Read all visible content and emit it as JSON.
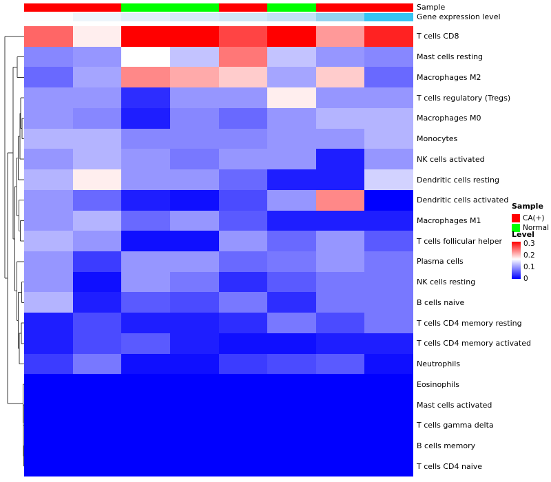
{
  "annotations": {
    "sample_label": "Sample",
    "expression_label": "Gene expression level",
    "sample_groups": [
      "CA(+)",
      "CA(+)",
      "Normal",
      "Normal",
      "CA(+)",
      "Normal",
      "CA(+)",
      "CA(+)"
    ],
    "expression_colors": [
      "#FDFDFE",
      "#EDF5FB",
      "#E0EFF9",
      "#D6EBF8",
      "#CFE8F7",
      "#C2E2F5",
      "#93D3F0",
      "#35C4F3"
    ]
  },
  "chart_data": {
    "type": "heatmap",
    "title": "",
    "rows": [
      "T cells CD8",
      "Mast cells resting",
      "Macrophages M2",
      "T cells regulatory (Tregs)",
      "Macrophages M0",
      "Monocytes",
      "NK cells activated",
      "Dendritic cells resting",
      "Dendritic cells activated",
      "Macrophages M1",
      "T cells follicular helper",
      "Plasma cells",
      "NK cells resting",
      "B cells naive",
      "T cells CD4 memory resting",
      "T cells CD4 memory activated",
      "Neutrophils",
      "Eosinophils",
      "Mast cells activated",
      "T cells gamma delta",
      "B cells memory",
      "T cells CD4 naive"
    ],
    "n_columns": 8,
    "column_groups": [
      "CA(+)",
      "CA(+)",
      "Normal",
      "Normal",
      "CA(+)",
      "Normal",
      "CA(+)",
      "CA(+)"
    ],
    "values": [
      [
        0.26,
        0.18,
        0.32,
        0.32,
        0.28,
        0.32,
        0.23,
        0.3
      ],
      [
        0.09,
        0.1,
        0.17,
        0.13,
        0.25,
        0.13,
        0.1,
        0.09
      ],
      [
        0.07,
        0.11,
        0.24,
        0.22,
        0.2,
        0.11,
        0.2,
        0.07
      ],
      [
        0.1,
        0.1,
        0.03,
        0.1,
        0.1,
        0.18,
        0.1,
        0.1
      ],
      [
        0.1,
        0.09,
        0.02,
        0.09,
        0.07,
        0.1,
        0.12,
        0.12
      ],
      [
        0.12,
        0.12,
        0.09,
        0.09,
        0.09,
        0.1,
        0.1,
        0.12
      ],
      [
        0.1,
        0.12,
        0.1,
        0.08,
        0.1,
        0.1,
        0.02,
        0.1
      ],
      [
        0.12,
        0.18,
        0.1,
        0.1,
        0.07,
        0.02,
        0.02,
        0.14
      ],
      [
        0.1,
        0.07,
        0.02,
        0.01,
        0.05,
        0.1,
        0.24,
        0.0
      ],
      [
        0.1,
        0.12,
        0.07,
        0.1,
        0.06,
        0.02,
        0.02,
        0.02
      ],
      [
        0.12,
        0.1,
        0.01,
        0.01,
        0.1,
        0.07,
        0.1,
        0.06
      ],
      [
        0.1,
        0.04,
        0.1,
        0.1,
        0.07,
        0.08,
        0.1,
        0.08
      ],
      [
        0.1,
        0.01,
        0.1,
        0.08,
        0.03,
        0.06,
        0.08,
        0.08
      ],
      [
        0.12,
        0.02,
        0.06,
        0.05,
        0.08,
        0.03,
        0.08,
        0.08
      ],
      [
        0.02,
        0.05,
        0.02,
        0.02,
        0.03,
        0.08,
        0.05,
        0.08
      ],
      [
        0.02,
        0.05,
        0.06,
        0.02,
        0.01,
        0.01,
        0.02,
        0.02
      ],
      [
        0.04,
        0.08,
        0.01,
        0.01,
        0.04,
        0.05,
        0.06,
        0.01
      ],
      [
        0.0,
        0.0,
        0.0,
        0.0,
        0.0,
        0.0,
        0.0,
        0.0
      ],
      [
        0.0,
        0.0,
        0.0,
        0.0,
        0.0,
        0.0,
        0.0,
        0.0
      ],
      [
        0.0,
        0.0,
        0.0,
        0.0,
        0.0,
        0.0,
        0.0,
        0.0
      ],
      [
        0.0,
        0.0,
        0.0,
        0.0,
        0.0,
        0.0,
        0.0,
        0.0
      ],
      [
        0.0,
        0.0,
        0.0,
        0.0,
        0.0,
        0.0,
        0.0,
        0.0
      ]
    ],
    "color_scale": {
      "min": 0,
      "mid": 0.17,
      "max": 0.32,
      "min_color": "#0000FF",
      "mid_color": "#FFFFFF",
      "max_color": "#FF0000"
    },
    "legend_position": "right",
    "grid": false
  },
  "legends": {
    "sample": {
      "title": "Sample",
      "entries": [
        {
          "label": "CA(+)",
          "color": "#FF0000"
        },
        {
          "label": "Normal",
          "color": "#00FF00"
        }
      ]
    },
    "level": {
      "title": "Level",
      "ticks": [
        "0.3",
        "0.2",
        "0.1",
        "0"
      ],
      "tick_values": [
        0.3,
        0.2,
        0.1,
        0
      ]
    }
  },
  "dendrogram_tree": {
    "h": 1.0,
    "c": [
      0,
      {
        "h": 0.86,
        "c": [
          {
            "h": 0.58,
            "c": [
              {
                "h": 0.36,
                "c": [
                  1,
                  2
                ]
              },
              {
                "h": 0.48,
                "c": [
                  {
                    "h": 0.4,
                    "c": [
                      {
                        "h": 0.3,
                        "c": [
                          {
                            "h": 0.22,
                            "c": [
                              {
                                "h": 0.17,
                                "c": [
                                  3,
                                  {
                                    "h": 0.11,
                                    "c": [
                                      4,
                                      5
                                    ]
                                  }
                                ]
                              },
                              6
                            ]
                          },
                          7
                        ]
                      },
                      {
                        "h": 0.26,
                        "c": [
                          8,
                          {
                            "h": 0.2,
                            "c": [
                              9,
                              10
                            ]
                          }
                        ]
                      }
                    ]
                  },
                  {
                    "h": 0.37,
                    "c": [
                      11,
                      {
                        "h": 0.31,
                        "c": [
                          {
                            "h": 0.13,
                            "c": [
                              12,
                              13
                            ]
                          },
                          {
                            "h": 0.25,
                            "c": [
                              {
                                "h": 0.15,
                                "c": [
                                  14,
                                  15
                                ]
                              },
                              16
                            ]
                          }
                        ]
                      }
                    ]
                  }
                ]
              }
            ]
          },
          {
            "h": 0.05,
            "c": [
              17,
              {
                "h": 0.04,
                "c": [
                  18,
                  {
                    "h": 0.03,
                    "c": [
                      19,
                      {
                        "h": 0.02,
                        "c": [
                          20,
                          21
                        ]
                      }
                    ]
                  }
                ]
              }
            ]
          }
        ]
      }
    ]
  }
}
